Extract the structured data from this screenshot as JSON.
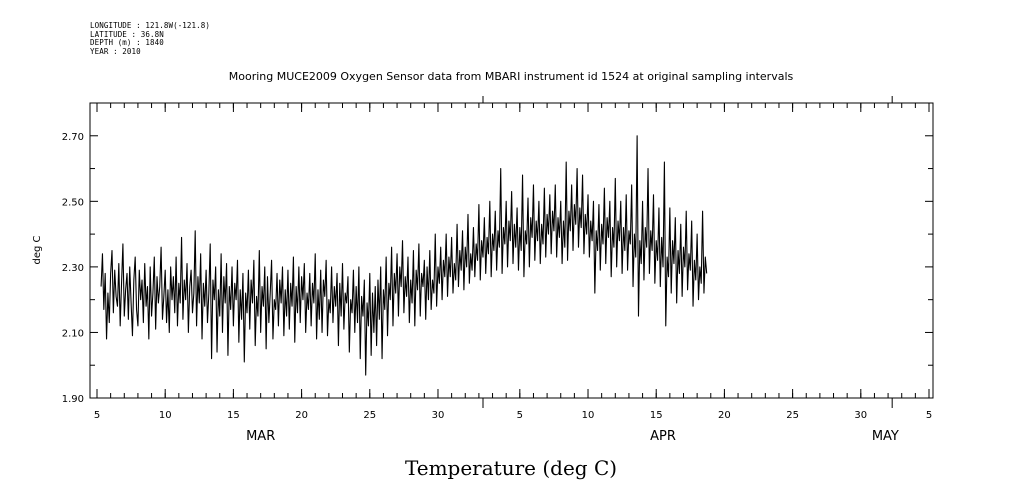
{
  "header": {
    "longitude": "LONGITUDE : 121.8W(-121.8)",
    "latitude": "LATITUDE : 36.8N",
    "depth": "DEPTH (m) : 1840",
    "year": "YEAR : 2010"
  },
  "chart_data": {
    "type": "line",
    "title": "Mooring MUCE2009 Oxygen Sensor data from MBARI instrument id 1524 at original sampling intervals",
    "xlabel": "Temperature (deg C)",
    "ylabel": "deg C",
    "ylim": [
      1.9,
      2.8
    ],
    "yticks": [
      1.9,
      2.1,
      2.3,
      2.5,
      2.7
    ],
    "ytick_labels": [
      "1.90",
      "2.10",
      "2.30",
      "2.50",
      "2.70"
    ],
    "x_unit": "day of year 2010",
    "xlim": [
      64,
      125
    ],
    "xticks": [
      {
        "label": "5",
        "doy": 64
      },
      {
        "label": "10",
        "doy": 69
      },
      {
        "label": "15",
        "doy": 74
      },
      {
        "label": "20",
        "doy": 79
      },
      {
        "label": "25",
        "doy": 84
      },
      {
        "label": "30",
        "doy": 89
      },
      {
        "label": "5",
        "doy": 95
      },
      {
        "label": "10",
        "doy": 100
      },
      {
        "label": "15",
        "doy": 105
      },
      {
        "label": "20",
        "doy": 110
      },
      {
        "label": "25",
        "doy": 115
      },
      {
        "label": "30",
        "doy": 120
      },
      {
        "label": "5",
        "doy": 125
      }
    ],
    "months": [
      {
        "label": "MAR",
        "doy": 76
      },
      {
        "label": "APR",
        "doy": 105.5
      },
      {
        "label": "MAY",
        "doy": 121.8
      }
    ],
    "series": [
      {
        "name": "Temperature",
        "x_start_doy": 64.3,
        "x_step_days": 0.1,
        "values": [
          2.24,
          2.34,
          2.17,
          2.28,
          2.08,
          2.22,
          2.13,
          2.28,
          2.35,
          2.16,
          2.29,
          2.21,
          2.18,
          2.31,
          2.12,
          2.25,
          2.37,
          2.15,
          2.23,
          2.28,
          2.14,
          2.3,
          2.19,
          2.09,
          2.26,
          2.33,
          2.17,
          2.12,
          2.29,
          2.2,
          2.26,
          2.13,
          2.31,
          2.18,
          2.24,
          2.08,
          2.3,
          2.15,
          2.22,
          2.33,
          2.11,
          2.27,
          2.19,
          2.24,
          2.36,
          2.14,
          2.21,
          2.29,
          2.13,
          2.23,
          2.1,
          2.3,
          2.2,
          2.27,
          2.16,
          2.33,
          2.12,
          2.25,
          2.19,
          2.39,
          2.14,
          2.26,
          2.2,
          2.31,
          2.1,
          2.24,
          2.29,
          2.16,
          2.22,
          2.41,
          2.12,
          2.27,
          2.19,
          2.34,
          2.08,
          2.25,
          2.18,
          2.29,
          2.13,
          2.22,
          2.37,
          2.02,
          2.26,
          2.2,
          2.3,
          2.04,
          2.23,
          2.15,
          2.34,
          2.1,
          2.27,
          2.19,
          2.31,
          2.03,
          2.24,
          2.17,
          2.3,
          2.12,
          2.25,
          2.2,
          2.32,
          2.07,
          2.23,
          2.14,
          2.28,
          2.01,
          2.22,
          2.16,
          2.29,
          2.11,
          2.26,
          2.19,
          2.32,
          2.06,
          2.21,
          2.15,
          2.35,
          2.1,
          2.24,
          2.18,
          2.3,
          2.05,
          2.27,
          2.13,
          2.22,
          2.32,
          2.08,
          2.2,
          2.17,
          2.28,
          2.12,
          2.26,
          2.19,
          2.3,
          2.09,
          2.23,
          2.15,
          2.29,
          2.11,
          2.25,
          2.18,
          2.33,
          2.07,
          2.24,
          2.16,
          2.3,
          2.13,
          2.27,
          2.2,
          2.31,
          2.1,
          2.22,
          2.17,
          2.28,
          2.12,
          2.25,
          2.19,
          2.34,
          2.08,
          2.23,
          2.14,
          2.29,
          2.1,
          2.26,
          2.21,
          2.32,
          2.09,
          2.2,
          2.16,
          2.3,
          2.13,
          2.24,
          2.18,
          2.28,
          2.06,
          2.25,
          2.15,
          2.31,
          2.11,
          2.22,
          2.19,
          2.27,
          2.04,
          2.2,
          2.16,
          2.29,
          2.1,
          2.24,
          2.13,
          2.3,
          2.02,
          2.21,
          2.15,
          2.26,
          1.97,
          2.19,
          2.12,
          2.28,
          2.03,
          2.22,
          2.1,
          2.24,
          2.06,
          2.26,
          2.14,
          2.3,
          2.02,
          2.23,
          2.17,
          2.33,
          2.09,
          2.25,
          2.2,
          2.36,
          2.12,
          2.28,
          2.22,
          2.34,
          2.15,
          2.3,
          2.24,
          2.38,
          2.16,
          2.27,
          2.21,
          2.33,
          2.13,
          2.26,
          2.19,
          2.35,
          2.12,
          2.29,
          2.23,
          2.37,
          2.15,
          2.28,
          2.24,
          2.32,
          2.14,
          2.3,
          2.2,
          2.35,
          2.17,
          2.26,
          2.22,
          2.4,
          2.18,
          2.3,
          2.25,
          2.36,
          2.2,
          2.32,
          2.27,
          2.4,
          2.21,
          2.33,
          2.27,
          2.39,
          2.22,
          2.31,
          2.26,
          2.43,
          2.24,
          2.35,
          2.29,
          2.41,
          2.23,
          2.36,
          2.3,
          2.46,
          2.25,
          2.34,
          2.29,
          2.42,
          2.27,
          2.37,
          2.32,
          2.49,
          2.26,
          2.38,
          2.33,
          2.45,
          2.28,
          2.39,
          2.34,
          2.5,
          2.27,
          2.4,
          2.35,
          2.47,
          2.29,
          2.41,
          2.36,
          2.6,
          2.28,
          2.42,
          2.37,
          2.5,
          2.3,
          2.44,
          2.38,
          2.53,
          2.31,
          2.43,
          2.36,
          2.48,
          2.29,
          2.42,
          2.35,
          2.58,
          2.27,
          2.41,
          2.37,
          2.51,
          2.3,
          2.45,
          2.39,
          2.55,
          2.32,
          2.44,
          2.38,
          2.5,
          2.31,
          2.43,
          2.37,
          2.54,
          2.33,
          2.46,
          2.4,
          2.52,
          2.34,
          2.47,
          2.41,
          2.55,
          2.33,
          2.45,
          2.39,
          2.5,
          2.31,
          2.44,
          2.36,
          2.62,
          2.32,
          2.47,
          2.41,
          2.55,
          2.35,
          2.49,
          2.43,
          2.6,
          2.36,
          2.48,
          2.42,
          2.58,
          2.34,
          2.46,
          2.4,
          2.52,
          2.33,
          2.44,
          2.38,
          2.5,
          2.22,
          2.41,
          2.35,
          2.49,
          2.29,
          2.43,
          2.37,
          2.54,
          2.31,
          2.45,
          2.39,
          2.5,
          2.27,
          2.42,
          2.36,
          2.57,
          2.3,
          2.44,
          2.38,
          2.5,
          2.28,
          2.42,
          2.35,
          2.52,
          2.29,
          2.41,
          2.37,
          2.55,
          2.24,
          2.4,
          2.33,
          2.7,
          2.15,
          2.38,
          2.31,
          2.5,
          2.26,
          2.42,
          2.36,
          2.6,
          2.28,
          2.41,
          2.35,
          2.52,
          2.25,
          2.38,
          2.32,
          2.48,
          2.24,
          2.39,
          2.3,
          2.62,
          2.12,
          2.33,
          2.27,
          2.48,
          2.22,
          2.38,
          2.31,
          2.45,
          2.19,
          2.35,
          2.28,
          2.43,
          2.21,
          2.36,
          2.3,
          2.47,
          2.23,
          2.34,
          2.29,
          2.44,
          2.18,
          2.32,
          2.26,
          2.4,
          2.2,
          2.3,
          2.25,
          2.47,
          2.22,
          2.33,
          2.28
        ]
      }
    ]
  }
}
